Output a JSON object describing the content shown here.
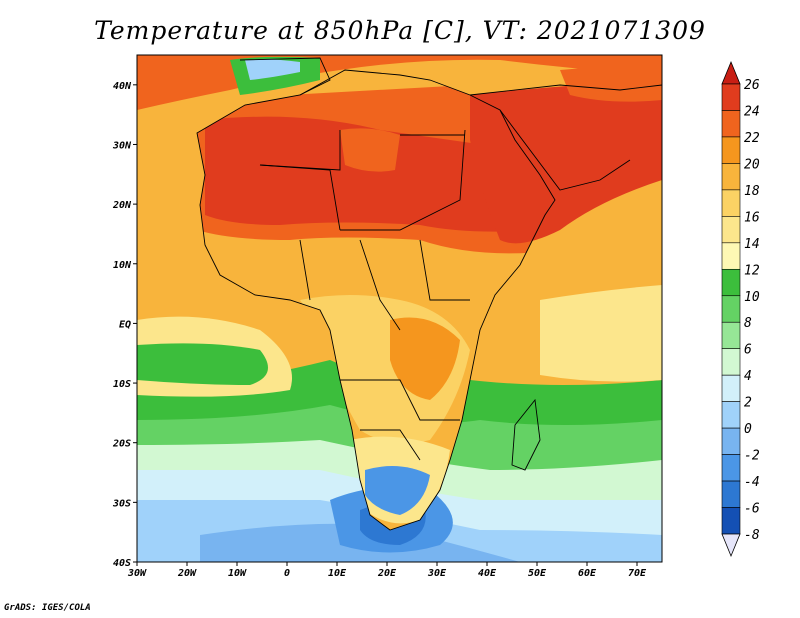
{
  "title": "Temperature at 850hPa [C], VT: 2021071309",
  "credit": "GrADS: IGES/COLA",
  "map": {
    "lon_range": [
      -30,
      75
    ],
    "lat_range": [
      -40,
      45
    ],
    "lon_ticks": [
      {
        "value": -30,
        "label": "30W"
      },
      {
        "value": -20,
        "label": "20W"
      },
      {
        "value": -10,
        "label": "10W"
      },
      {
        "value": 0,
        "label": "0"
      },
      {
        "value": 10,
        "label": "10E"
      },
      {
        "value": 20,
        "label": "20E"
      },
      {
        "value": 30,
        "label": "30E"
      },
      {
        "value": 40,
        "label": "40E"
      },
      {
        "value": 50,
        "label": "50E"
      },
      {
        "value": 60,
        "label": "60E"
      },
      {
        "value": 70,
        "label": "70E"
      }
    ],
    "lat_ticks": [
      {
        "value": 40,
        "label": "40N"
      },
      {
        "value": 30,
        "label": "30N"
      },
      {
        "value": 20,
        "label": "20N"
      },
      {
        "value": 10,
        "label": "10N"
      },
      {
        "value": 0,
        "label": "EQ"
      },
      {
        "value": -10,
        "label": "10S"
      },
      {
        "value": -20,
        "label": "20S"
      },
      {
        "value": -30,
        "label": "30S"
      },
      {
        "value": -40,
        "label": "40S"
      }
    ]
  },
  "colorbar": {
    "labels": [
      "26",
      "24",
      "22",
      "20",
      "18",
      "16",
      "14",
      "12",
      "10",
      "8",
      "6",
      "4",
      "2",
      "0",
      "-2",
      "-4",
      "-6",
      "-8"
    ],
    "colors": [
      "#e03c1e",
      "#f0641e",
      "#f5961e",
      "#f8b43c",
      "#fbd264",
      "#fce68c",
      "#fef8b4",
      "#3cbe3c",
      "#64d264",
      "#96e696",
      "#d2f8d2",
      "#d2f0fa",
      "#a0d2fa",
      "#78b4f0",
      "#4b96e6",
      "#2d78d2",
      "#1450b4",
      "#0a2a8c"
    ],
    "top_color": "#c81e14",
    "bottom_color": "#e6e6fa"
  }
}
